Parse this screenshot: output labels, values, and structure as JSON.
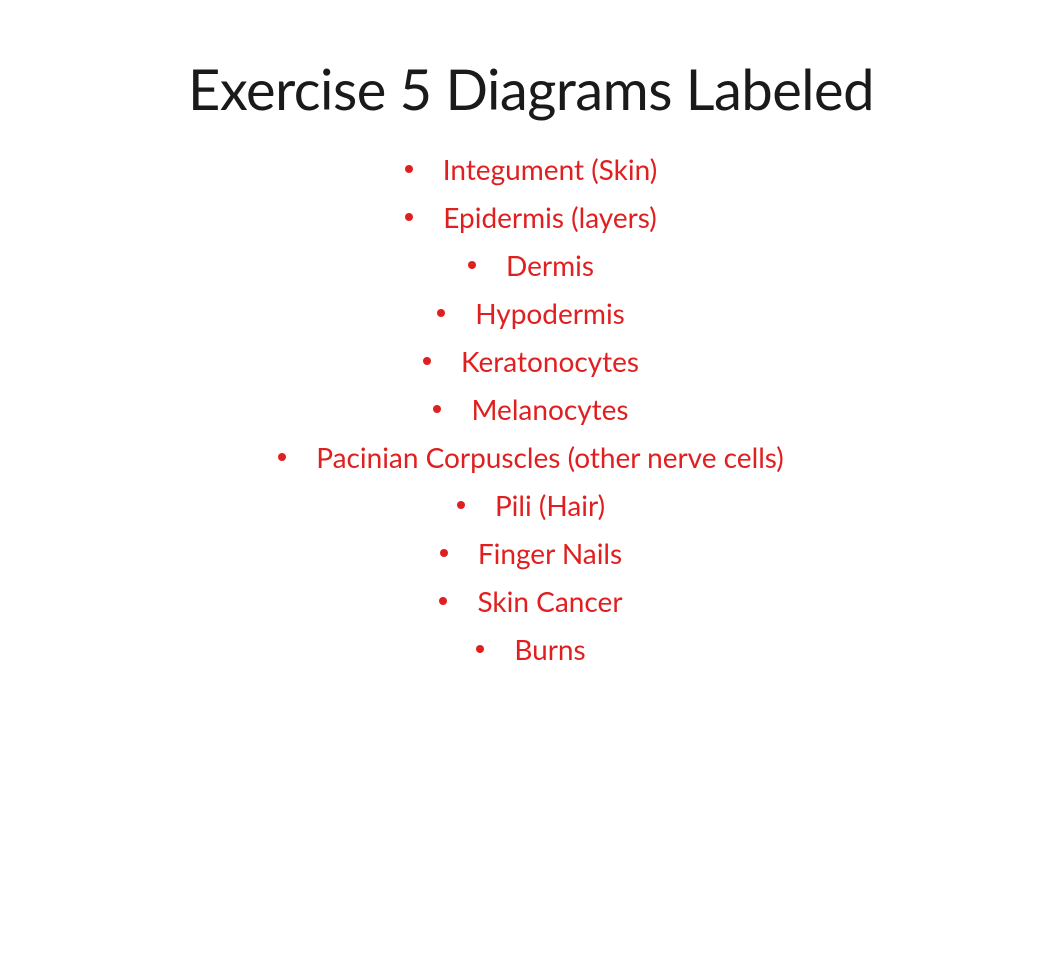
{
  "title": "Exercise 5 Diagrams Labeled",
  "items": [
    "Integument (Skin)",
    "Epidermis (layers)",
    "Dermis",
    "Hypodermis",
    "Keratonocytes",
    "Melanocytes",
    "Pacinian Corpuscles (other nerve cells)",
    "Pili (Hair)",
    "Finger Nails",
    "Skin Cancer",
    "Burns"
  ],
  "colors": {
    "title": "#1a1a1a",
    "link": "#e02020",
    "background": "#ffffff"
  },
  "typography": {
    "title_fontsize": 56,
    "title_weight": 400,
    "item_fontsize": 28,
    "item_weight": 400
  }
}
